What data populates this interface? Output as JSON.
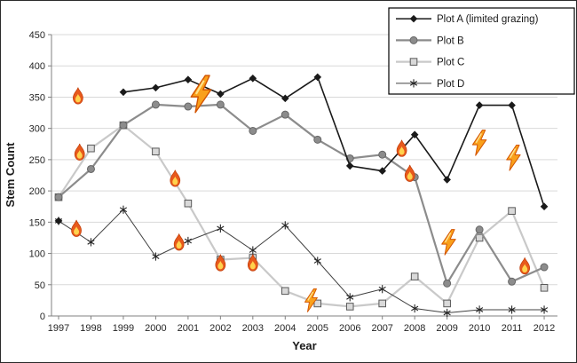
{
  "figure": {
    "background": "#ffffff",
    "border_color": "#2b2b2b",
    "gridline_color": "#d9d9d9",
    "axis_color": "#808080",
    "tick_label_color": "#262626"
  },
  "chart_data": {
    "type": "line",
    "title": "",
    "xlabel": "Year",
    "ylabel": "Stem Count",
    "ylim": [
      0,
      450
    ],
    "ytick_step": 50,
    "grid": true,
    "legend_position": "top-right",
    "years": [
      1997,
      1998,
      1999,
      2000,
      2001,
      2002,
      2003,
      2004,
      2005,
      2006,
      2007,
      2008,
      2009,
      2010,
      2011,
      2012
    ],
    "series": [
      {
        "id": "plot-a",
        "name": "Plot A (limited grazing)",
        "marker": "diamond",
        "color": "#1a1a1a",
        "width": 1.6,
        "values": [
          152,
          null,
          358,
          365,
          378,
          355,
          380,
          348,
          382,
          240,
          232,
          290,
          218,
          337,
          337,
          175
        ]
      },
      {
        "id": "plot-b",
        "name": "Plot B",
        "marker": "circle",
        "color": "#8c8c8c",
        "width": 2.2,
        "values": [
          190,
          235,
          305,
          338,
          335,
          338,
          296,
          322,
          282,
          252,
          258,
          222,
          52,
          138,
          55,
          78
        ]
      },
      {
        "id": "plot-c",
        "name": "Plot C",
        "marker": "square",
        "color": "#c9c9c9",
        "width": 2.2,
        "values": [
          190,
          268,
          305,
          263,
          180,
          90,
          93,
          40,
          20,
          15,
          20,
          63,
          20,
          125,
          168,
          45
        ]
      },
      {
        "id": "plot-d",
        "name": "Plot D",
        "marker": "star",
        "color": "#404040",
        "width": 1,
        "values": [
          152,
          118,
          170,
          95,
          120,
          140,
          105,
          145,
          88,
          30,
          43,
          12,
          5,
          10,
          10,
          10
        ]
      }
    ],
    "annotations": [
      {
        "type": "flame",
        "year": 1997.6,
        "value": 352,
        "scale": 1
      },
      {
        "type": "flame",
        "year": 1997.65,
        "value": 262,
        "scale": 1
      },
      {
        "type": "flame",
        "year": 1997.55,
        "value": 140,
        "scale": 1
      },
      {
        "type": "flame",
        "year": 2000.6,
        "value": 220,
        "scale": 1
      },
      {
        "type": "bolt",
        "year": 2001.4,
        "value": 355,
        "scale": 1.6
      },
      {
        "type": "flame",
        "year": 2000.72,
        "value": 118,
        "scale": 1
      },
      {
        "type": "flame",
        "year": 2002.0,
        "value": 85,
        "scale": 1
      },
      {
        "type": "flame",
        "year": 2003.0,
        "value": 85,
        "scale": 1
      },
      {
        "type": "bolt",
        "year": 2004.8,
        "value": 25,
        "scale": 1
      },
      {
        "type": "flame",
        "year": 2007.6,
        "value": 268,
        "scale": 1
      },
      {
        "type": "flame",
        "year": 2007.85,
        "value": 228,
        "scale": 1
      },
      {
        "type": "bolt",
        "year": 2009.05,
        "value": 118,
        "scale": 1.1
      },
      {
        "type": "bolt",
        "year": 2010.0,
        "value": 277,
        "scale": 1.1
      },
      {
        "type": "bolt",
        "year": 2011.05,
        "value": 253,
        "scale": 1.1
      },
      {
        "type": "flame",
        "year": 2011.4,
        "value": 80,
        "scale": 1
      }
    ],
    "flame_colors": {
      "outer": "#e8591c",
      "outline": "#c03d08",
      "inner": "#ffd24d"
    },
    "bolt_colors": {
      "fill": "#f9a01b",
      "outline": "#d35400"
    }
  }
}
